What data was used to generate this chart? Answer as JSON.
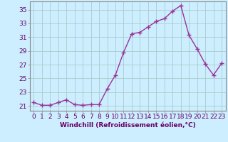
{
  "x": [
    0,
    1,
    2,
    3,
    4,
    5,
    6,
    7,
    8,
    9,
    10,
    11,
    12,
    13,
    14,
    15,
    16,
    17,
    18,
    19,
    20,
    21,
    22,
    23
  ],
  "y": [
    21.5,
    21.1,
    21.1,
    21.5,
    21.9,
    21.2,
    21.1,
    21.2,
    21.2,
    23.5,
    25.5,
    28.8,
    31.5,
    31.7,
    32.5,
    33.3,
    33.7,
    34.8,
    35.6,
    31.3,
    29.3,
    27.1,
    25.5,
    27.2
  ],
  "line_color": "#993399",
  "marker": "+",
  "marker_size": 4,
  "background_color": "#cceeff",
  "grid_color": "#aacccc",
  "xlabel": "Windchill (Refroidissement éolien,°C)",
  "ylabel": "",
  "title": "",
  "xlim": [
    -0.5,
    23.5
  ],
  "ylim": [
    20.3,
    36.2
  ],
  "yticks": [
    21,
    23,
    25,
    27,
    29,
    31,
    33,
    35
  ],
  "xticks": [
    0,
    1,
    2,
    3,
    4,
    5,
    6,
    7,
    8,
    9,
    10,
    11,
    12,
    13,
    14,
    15,
    16,
    17,
    18,
    19,
    20,
    21,
    22,
    23
  ],
  "xlabel_fontsize": 6.5,
  "tick_fontsize": 6.5,
  "linewidth": 1.0,
  "spine_color": "#888888",
  "label_color": "#660066"
}
